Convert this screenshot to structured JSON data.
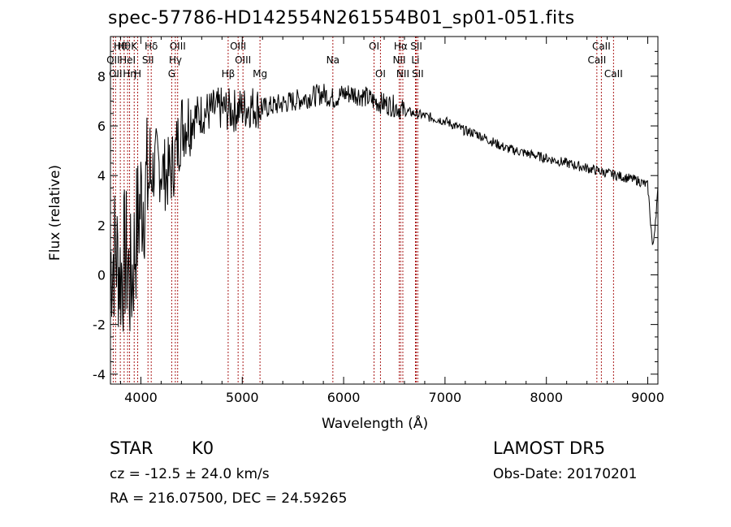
{
  "chart_data": {
    "type": "line",
    "title": "spec-57786-HD142554N261554B01_sp01-051.fits",
    "xlabel": "Wavelength (Å)",
    "ylabel": "Flux (relative)",
    "xlim": [
      3700,
      9100
    ],
    "ylim": [
      -4.4,
      9.6
    ],
    "xticks": [
      4000,
      5000,
      6000,
      7000,
      8000,
      9000
    ],
    "yticks": [
      -4,
      -2,
      0,
      2,
      4,
      6,
      8
    ],
    "grid": false,
    "line_color": "#000000",
    "marker_color": "#a00000",
    "series": [
      {
        "x": [
          3700,
          3750,
          3800,
          3850,
          3900,
          3950,
          4000,
          4050,
          4100,
          4150,
          4200,
          4250,
          4300,
          4350,
          4400,
          4450,
          4500,
          4600,
          4700,
          4800,
          4900,
          5000,
          5100,
          5200,
          5300,
          5400,
          5500,
          5600,
          5700,
          5800,
          5900,
          6000,
          6100,
          6200,
          6300,
          6400,
          6500,
          6600,
          6700,
          6800,
          6900,
          7000,
          7100,
          7200,
          7300,
          7400,
          7500,
          7600,
          7700,
          7800,
          7900,
          8000,
          8100,
          8200,
          8300,
          8400,
          8500,
          8600,
          8700,
          8800,
          8900,
          9000,
          9050,
          9100
        ],
        "y": [
          0.5,
          1.0,
          0.0,
          0.8,
          -0.5,
          1.5,
          3.0,
          3.5,
          4.0,
          4.5,
          4.3,
          4.0,
          4.2,
          5.0,
          6.0,
          6.2,
          6.3,
          6.5,
          6.6,
          6.7,
          6.6,
          6.7,
          6.8,
          6.7,
          6.8,
          6.9,
          7.0,
          7.1,
          7.2,
          7.3,
          7.1,
          7.3,
          7.3,
          7.2,
          7.0,
          6.9,
          6.8,
          6.6,
          6.5,
          6.4,
          6.3,
          6.2,
          6.0,
          5.8,
          5.7,
          5.5,
          5.3,
          5.1,
          5.0,
          4.9,
          4.8,
          4.7,
          4.6,
          4.5,
          4.4,
          4.3,
          4.2,
          4.1,
          4.0,
          3.9,
          3.8,
          3.6,
          1.0,
          3.4
        ]
      }
    ],
    "lines": [
      {
        "x": 3797,
        "label": "Hθ",
        "row": 0
      },
      {
        "x": 3835,
        "label": "Hθ",
        "row": 0
      },
      {
        "x": 3934,
        "label": "K",
        "row": 0
      },
      {
        "x": 3969,
        "label": "H",
        "row": 2
      },
      {
        "x": 4102,
        "label": "Hδ",
        "row": 0
      },
      {
        "x": 3727,
        "label": "OII",
        "row": 1
      },
      {
        "x": 3869,
        "label": "HeI",
        "row": 1
      },
      {
        "x": 4070,
        "label": "SII",
        "row": 1
      },
      {
        "x": 3750,
        "label": "OII",
        "row": 2
      },
      {
        "x": 3889,
        "label": "Hη",
        "row": 2
      },
      {
        "x": 4340,
        "label": "Hγ",
        "row": 1
      },
      {
        "x": 4363,
        "label": "OIII",
        "row": 0
      },
      {
        "x": 4304,
        "label": "G",
        "row": 2
      },
      {
        "x": 4861,
        "label": "Hβ",
        "row": 2
      },
      {
        "x": 4959,
        "label": "OIII",
        "row": 0
      },
      {
        "x": 5007,
        "label": "OIII",
        "row": 1
      },
      {
        "x": 5175,
        "label": "Mg",
        "row": 2
      },
      {
        "x": 5894,
        "label": "Na",
        "row": 1
      },
      {
        "x": 6300,
        "label": "OI",
        "row": 0
      },
      {
        "x": 6363,
        "label": "OI",
        "row": 2
      },
      {
        "x": 6563,
        "label": "Hα",
        "row": 0
      },
      {
        "x": 6548,
        "label": "NII",
        "row": 1
      },
      {
        "x": 6584,
        "label": "NII",
        "row": 2
      },
      {
        "x": 6717,
        "label": "SII",
        "row": 0
      },
      {
        "x": 6708,
        "label": "Li",
        "row": 1
      },
      {
        "x": 6731,
        "label": "SII",
        "row": 2
      },
      {
        "x": 8498,
        "label": "CaII",
        "row": 1
      },
      {
        "x": 8542,
        "label": "CaII",
        "row": 0
      },
      {
        "x": 8662,
        "label": "CaII",
        "row": 2
      }
    ]
  },
  "info": {
    "class": "STAR",
    "subclass": "K0",
    "survey": "LAMOST DR5",
    "cz": "cz = -12.5 ± 24.0 km/s",
    "obs_date": "Obs-Date: 20170201",
    "radec": "RA = 216.07500, DEC =  24.59265"
  }
}
